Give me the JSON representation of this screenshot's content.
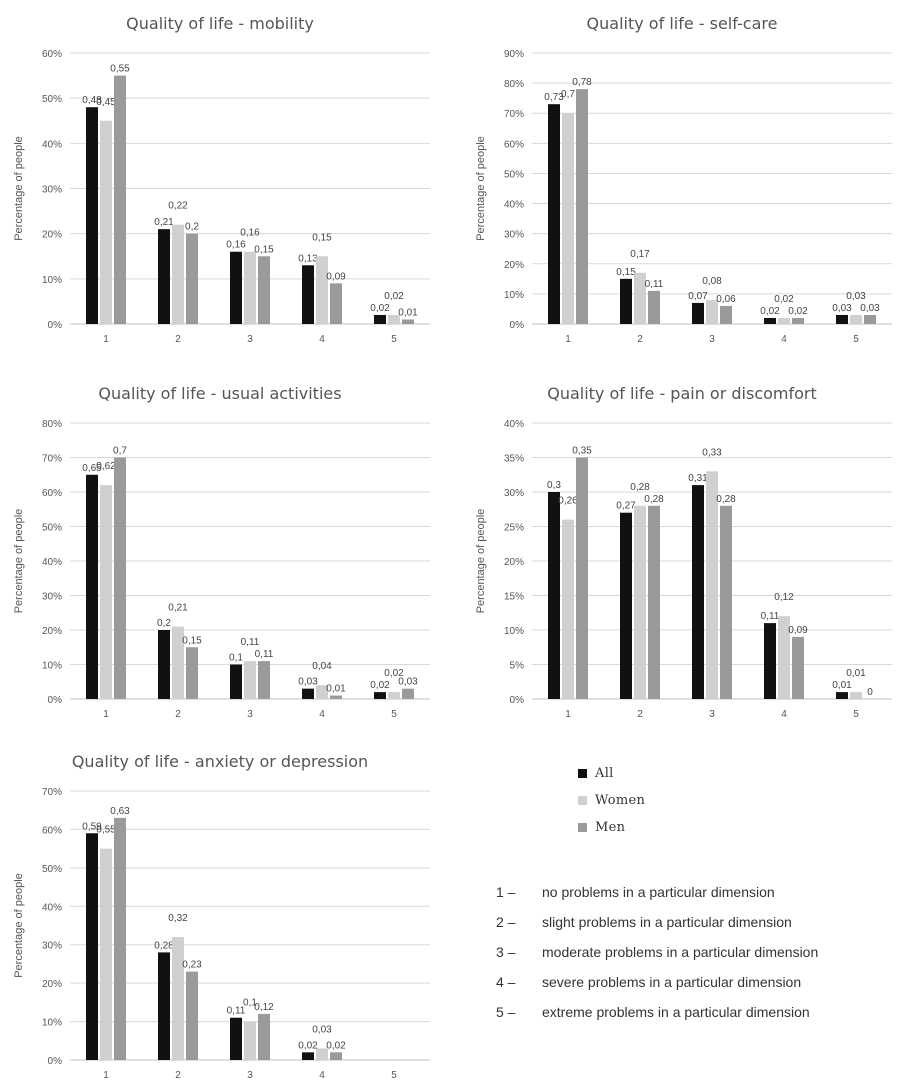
{
  "colors": {
    "All": "#111111",
    "Women": "#d0d0d0",
    "Men": "#9a9a9a",
    "grid": "#d9d9d9",
    "axis": "#bfbfbf"
  },
  "legend": {
    "items": [
      {
        "label": "All",
        "color": "#111111"
      },
      {
        "label": "Women",
        "color": "#d0d0d0"
      },
      {
        "label": "Men",
        "color": "#9a9a9a"
      }
    ]
  },
  "notes": [
    {
      "num": "1 –",
      "text": "no problems in a particular dimension"
    },
    {
      "num": "2 –",
      "text": "slight problems in a particular dimension"
    },
    {
      "num": "3 –",
      "text": "moderate problems in a particular dimension"
    },
    {
      "num": "4 –",
      "text": "severe problems in a particular dimension"
    },
    {
      "num": "5 –",
      "text": "extreme problems in a particular dimension"
    }
  ],
  "chart_data": [
    {
      "type": "bar",
      "title": "Quality of life - mobility",
      "ylabel": "Percentage of people",
      "categories": [
        "1",
        "2",
        "3",
        "4",
        "5"
      ],
      "ylim": [
        0,
        0.6
      ],
      "yticks": [
        0,
        0.1,
        0.2,
        0.3,
        0.4,
        0.5,
        0.6
      ],
      "yticklabels": [
        "0%",
        "10%",
        "20%",
        "30%",
        "40%",
        "50%",
        "60%"
      ],
      "series": [
        {
          "name": "All",
          "values": [
            0.48,
            0.21,
            0.16,
            0.13,
            0.02
          ],
          "labels": [
            "0,48",
            "0,21",
            "0,16",
            "0,13",
            "0,02"
          ]
        },
        {
          "name": "Women",
          "values": [
            0.45,
            0.22,
            0.16,
            0.15,
            0.02
          ],
          "labels": [
            "0,45",
            "0,22",
            "0,16",
            "0,15",
            "0,02"
          ]
        },
        {
          "name": "Men",
          "values": [
            0.55,
            0.2,
            0.15,
            0.09,
            0.01
          ],
          "labels": [
            "0,55",
            "0,2",
            "0,15",
            "0,09",
            "0,01"
          ]
        }
      ]
    },
    {
      "type": "bar",
      "title": "Quality of life - self-care",
      "ylabel": "Percentage of people",
      "categories": [
        "1",
        "2",
        "3",
        "4",
        "5"
      ],
      "ylim": [
        0,
        0.9
      ],
      "yticks": [
        0,
        0.1,
        0.2,
        0.3,
        0.4,
        0.5,
        0.6,
        0.7,
        0.8,
        0.9
      ],
      "yticklabels": [
        "0%",
        "10%",
        "20%",
        "30%",
        "40%",
        "50%",
        "60%",
        "70%",
        "80%",
        "90%"
      ],
      "series": [
        {
          "name": "All",
          "values": [
            0.73,
            0.15,
            0.07,
            0.02,
            0.03
          ],
          "labels": [
            "0,73",
            "0,15",
            "0,07",
            "0,02",
            "0,03"
          ]
        },
        {
          "name": "Women",
          "values": [
            0.7,
            0.17,
            0.08,
            0.02,
            0.03
          ],
          "labels": [
            "0,7",
            "0,17",
            "0,08",
            "0,02",
            "0,03"
          ]
        },
        {
          "name": "Men",
          "values": [
            0.78,
            0.11,
            0.06,
            0.02,
            0.03
          ],
          "labels": [
            "0,78",
            "0,11",
            "0,06",
            "0,02",
            "0,03"
          ]
        }
      ]
    },
    {
      "type": "bar",
      "title": "Quality of life - usual activities",
      "ylabel": "Percentage of people",
      "categories": [
        "1",
        "2",
        "3",
        "4",
        "5"
      ],
      "ylim": [
        0,
        0.8
      ],
      "yticks": [
        0,
        0.1,
        0.2,
        0.3,
        0.4,
        0.5,
        0.6,
        0.7,
        0.8
      ],
      "yticklabels": [
        "0%",
        "10%",
        "20%",
        "30%",
        "40%",
        "50%",
        "60%",
        "70%",
        "80%"
      ],
      "series": [
        {
          "name": "All",
          "values": [
            0.65,
            0.2,
            0.1,
            0.03,
            0.02
          ],
          "labels": [
            "0,65",
            "0,2",
            "0,1",
            "0,03",
            "0,02"
          ]
        },
        {
          "name": "Women",
          "values": [
            0.62,
            0.21,
            0.11,
            0.04,
            0.02
          ],
          "labels": [
            "0,62",
            "0,21",
            "0,11",
            "0,04",
            "0,02"
          ]
        },
        {
          "name": "Men",
          "values": [
            0.7,
            0.15,
            0.11,
            0.01,
            0.03
          ],
          "labels": [
            "0,7",
            "0,15",
            "0,11",
            "0,01",
            "0,03"
          ]
        }
      ]
    },
    {
      "type": "bar",
      "title": "Quality of life - pain or discomfort",
      "ylabel": "Percentage of people",
      "categories": [
        "1",
        "2",
        "3",
        "4",
        "5"
      ],
      "ylim": [
        0,
        0.4
      ],
      "yticks": [
        0,
        0.05,
        0.1,
        0.15,
        0.2,
        0.25,
        0.3,
        0.35,
        0.4
      ],
      "yticklabels": [
        "0%",
        "5%",
        "10%",
        "15%",
        "20%",
        "25%",
        "30%",
        "35%",
        "40%"
      ],
      "series": [
        {
          "name": "All",
          "values": [
            0.3,
            0.27,
            0.31,
            0.11,
            0.01
          ],
          "labels": [
            "0,3",
            "0,27",
            "0,31",
            "0,11",
            "0,01"
          ]
        },
        {
          "name": "Women",
          "values": [
            0.26,
            0.28,
            0.33,
            0.12,
            0.01
          ],
          "labels": [
            "0,26",
            "0,28",
            "0,33",
            "0,12",
            "0,01"
          ]
        },
        {
          "name": "Men",
          "values": [
            0.35,
            0.28,
            0.28,
            0.09,
            0
          ],
          "labels": [
            "0,35",
            "0,28",
            "0,28",
            "0,09",
            "0"
          ]
        }
      ]
    },
    {
      "type": "bar",
      "title": "Quality of life - anxiety or depression",
      "ylabel": "Percentage of people",
      "categories": [
        "1",
        "2",
        "3",
        "4",
        "5"
      ],
      "ylim": [
        0,
        0.7
      ],
      "yticks": [
        0,
        0.1,
        0.2,
        0.3,
        0.4,
        0.5,
        0.6,
        0.7
      ],
      "yticklabels": [
        "0%",
        "10%",
        "20%",
        "30%",
        "40%",
        "50%",
        "60%",
        "70%"
      ],
      "series": [
        {
          "name": "All",
          "values": [
            0.59,
            0.28,
            0.11,
            0.02,
            null
          ],
          "labels": [
            "0,59",
            "0,28",
            "0,11",
            "0,02",
            ""
          ]
        },
        {
          "name": "Women",
          "values": [
            0.55,
            0.32,
            0.1,
            0.03,
            null
          ],
          "labels": [
            "0,55",
            "0,32",
            "0,1",
            "0,03",
            ""
          ]
        },
        {
          "name": "Men",
          "values": [
            0.63,
            0.23,
            0.12,
            0.02,
            null
          ],
          "labels": [
            "0,63",
            "0,23",
            "0,12",
            "0,02",
            ""
          ]
        }
      ]
    }
  ]
}
